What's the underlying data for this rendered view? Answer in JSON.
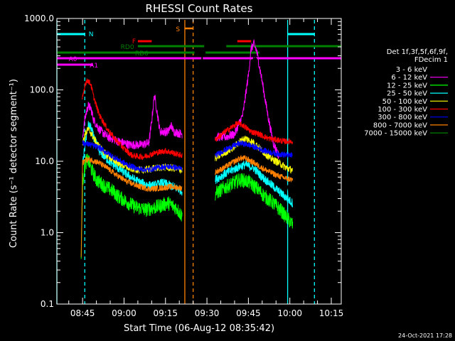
{
  "chart_data": {
    "type": "line",
    "title": "RHESSI Count Rates",
    "xlabel": "Start Time (06-Aug-12 08:35:42)",
    "ylabel": "Count Rate (s⁻¹ detector segment⁻¹)",
    "yscale": "log",
    "ylim": [
      0.1,
      1000
    ],
    "xlim_minutes": [
      35.7,
      138.6
    ],
    "y_ticks": [
      {
        "value": 0.1,
        "label": "0.1"
      },
      {
        "value": 1,
        "label": "1.0"
      },
      {
        "value": 10,
        "label": "10.0"
      },
      {
        "value": 100,
        "label": "100.0"
      },
      {
        "value": 1000,
        "label": "1000.0"
      }
    ],
    "x_ticks": [
      {
        "value": 45,
        "label": "08:45"
      },
      {
        "value": 60,
        "label": "09:00"
      },
      {
        "value": 75,
        "label": "09:15"
      },
      {
        "value": 90,
        "label": "09:30"
      },
      {
        "value": 105,
        "label": "09:45"
      },
      {
        "value": 120,
        "label": "10:00"
      },
      {
        "value": 135,
        "label": "10:15"
      }
    ],
    "legend_header": [
      "Det 1f,3f,5f,6f,9f,",
      "FDecim 1"
    ],
    "series": [
      {
        "name": "3 - 6 keV",
        "color": "#ffffff",
        "dark": "#000000",
        "noise": 0.07,
        "segments": [
          [
            [
              45,
              15
            ],
            [
              46,
              18
            ],
            [
              47,
              20
            ],
            [
              48,
              24
            ],
            [
              49,
              18
            ],
            [
              52,
              14
            ],
            [
              55,
              11
            ],
            [
              58,
              10
            ],
            [
              61,
              8
            ],
            [
              64,
              6.5
            ],
            [
              67,
              5.8
            ],
            [
              70,
              6.5
            ],
            [
              74,
              7.8
            ],
            [
              77,
              7.5
            ],
            [
              80,
              7
            ],
            [
              81,
              6.8
            ]
          ],
          [
            [
              93,
              9
            ],
            [
              96,
              10.5
            ],
            [
              99,
              12
            ],
            [
              102,
              18
            ],
            [
              104,
              50
            ],
            [
              106,
              200
            ],
            [
              107,
              285
            ],
            [
              108,
              240
            ],
            [
              110,
              130
            ],
            [
              112,
              40
            ],
            [
              114,
              16
            ],
            [
              117,
              7
            ],
            [
              120,
              3.5
            ],
            [
              121,
              2
            ]
          ]
        ]
      },
      {
        "name": "6 - 12 keV",
        "color": "#ff00ff",
        "noise": 0.06,
        "segments": [
          [
            [
              45,
              22
            ],
            [
              46,
              42
            ],
            [
              47,
              60
            ],
            [
              48,
              55
            ],
            [
              49,
              38
            ],
            [
              51,
              28
            ],
            [
              54,
              22
            ],
            [
              58,
              19
            ],
            [
              62,
              17
            ],
            [
              66,
              17
            ],
            [
              69,
              18
            ],
            [
              70,
              36
            ],
            [
              71,
              85
            ],
            [
              72,
              48
            ],
            [
              73,
              26
            ],
            [
              76,
              26
            ],
            [
              77,
              32
            ],
            [
              78,
              26
            ],
            [
              81,
              24
            ]
          ],
          [
            [
              93,
              22
            ],
            [
              97,
              22
            ],
            [
              100,
              24
            ],
            [
              103,
              45
            ],
            [
              105,
              160
            ],
            [
              106,
              380
            ],
            [
              107,
              440
            ],
            [
              108,
              350
            ],
            [
              110,
              130
            ],
            [
              112,
              45
            ],
            [
              114,
              18
            ],
            [
              116,
              12
            ]
          ]
        ]
      },
      {
        "name": "12 - 25 keV",
        "color": "#00ff00",
        "noise": 0.1,
        "segments": [
          [
            [
              44.5,
              0.42
            ],
            [
              45,
              5
            ],
            [
              46,
              9.5
            ],
            [
              47,
              10.5
            ],
            [
              48,
              8
            ],
            [
              50,
              5.5
            ],
            [
              53,
              4.5
            ],
            [
              56,
              3.8
            ],
            [
              58,
              3.2
            ],
            [
              61,
              2.7
            ],
            [
              64,
              2.3
            ],
            [
              68,
              2.1
            ],
            [
              72,
              2.3
            ],
            [
              76,
              2.6
            ],
            [
              79,
              2.2
            ],
            [
              81,
              1.7
            ]
          ],
          [
            [
              93,
              3.5
            ],
            [
              96,
              4.2
            ],
            [
              99,
              4.8
            ],
            [
              102,
              5.5
            ],
            [
              105,
              5.2
            ],
            [
              108,
              4.2
            ],
            [
              111,
              3.2
            ],
            [
              114,
              2.6
            ],
            [
              117,
              2
            ],
            [
              119,
              1.6
            ],
            [
              121,
              1.3
            ]
          ]
        ]
      },
      {
        "name": "25 - 50 keV",
        "color": "#00ffff",
        "noise": 0.06,
        "segments": [
          [
            [
              45,
              9
            ],
            [
              46,
              18
            ],
            [
              47,
              32
            ],
            [
              48,
              30
            ],
            [
              49,
              22
            ],
            [
              51,
              14
            ],
            [
              54,
              10.5
            ],
            [
              57,
              8.5
            ],
            [
              60,
              7
            ],
            [
              63,
              5.8
            ],
            [
              66,
              5
            ],
            [
              70,
              4.5
            ],
            [
              74,
              5
            ],
            [
              78,
              4.4
            ],
            [
              81,
              3.8
            ]
          ],
          [
            [
              93,
              5.5
            ],
            [
              96,
              6.5
            ],
            [
              99,
              7.5
            ],
            [
              102,
              8.5
            ],
            [
              104,
              9
            ],
            [
              107,
              8
            ],
            [
              110,
              6
            ],
            [
              113,
              4.8
            ],
            [
              116,
              3.8
            ],
            [
              119,
              3
            ],
            [
              121,
              2.6
            ]
          ]
        ]
      },
      {
        "name": "50 - 100 keV",
        "color": "#ffff00",
        "noise": 0.05,
        "segments": [
          [
            [
              45,
              18
            ],
            [
              46,
              24
            ],
            [
              47,
              28
            ],
            [
              48,
              25
            ],
            [
              50,
              18
            ],
            [
              53,
              13
            ],
            [
              56,
              10.5
            ],
            [
              59,
              9
            ],
            [
              62,
              8
            ],
            [
              66,
              7.5
            ],
            [
              70,
              7.8
            ],
            [
              74,
              8.3
            ],
            [
              78,
              8
            ],
            [
              81,
              7.5
            ]
          ],
          [
            [
              93,
              11
            ],
            [
              96,
              13
            ],
            [
              99,
              15
            ],
            [
              102,
              19
            ],
            [
              104,
              21
            ],
            [
              107,
              18
            ],
            [
              110,
              14
            ],
            [
              113,
              11
            ],
            [
              116,
              9.5
            ],
            [
              119,
              8
            ],
            [
              121,
              7.5
            ]
          ]
        ]
      },
      {
        "name": "100 - 300 keV",
        "color": "#ff0000",
        "noise": 0.04,
        "segments": [
          [
            [
              44.8,
              70
            ],
            [
              46,
              125
            ],
            [
              47,
              135
            ],
            [
              48,
              120
            ],
            [
              49,
              80
            ],
            [
              51,
              45
            ],
            [
              54,
              28
            ],
            [
              57,
              20
            ],
            [
              60,
              15
            ],
            [
              63,
              12
            ],
            [
              67,
              11.5
            ],
            [
              71,
              13
            ],
            [
              75,
              14
            ],
            [
              78,
              13
            ],
            [
              81,
              12
            ]
          ],
          [
            [
              93,
              20
            ],
            [
              96,
              25
            ],
            [
              99,
              30
            ],
            [
              101,
              34
            ],
            [
              103,
              32
            ],
            [
              106,
              26
            ],
            [
              109,
              24
            ],
            [
              112,
              21
            ],
            [
              115,
              20
            ],
            [
              118,
              19
            ],
            [
              121,
              19
            ]
          ]
        ]
      },
      {
        "name": "300 - 800 keV",
        "color": "#0000ff",
        "noise": 0.04,
        "segments": [
          [
            [
              45,
              18
            ],
            [
              48,
              17
            ],
            [
              51,
              15.5
            ],
            [
              54,
              13
            ],
            [
              57,
              11
            ],
            [
              61,
              9
            ],
            [
              65,
              7.8
            ],
            [
              69,
              7.6
            ],
            [
              73,
              8.3
            ],
            [
              77,
              8.4
            ],
            [
              81,
              7.8
            ]
          ],
          [
            [
              93,
              12
            ],
            [
              96,
              14
            ],
            [
              99,
              16
            ],
            [
              102,
              18
            ],
            [
              105,
              17
            ],
            [
              108,
              15.5
            ],
            [
              111,
              14
            ],
            [
              114,
              13
            ],
            [
              117,
              12.5
            ],
            [
              121,
              12
            ]
          ]
        ]
      },
      {
        "name": "800 - 7000 keV",
        "color": "#ff8000",
        "noise": 0.04,
        "segments": [
          [
            [
              44.5,
              0.45
            ],
            [
              45,
              9.5
            ],
            [
              46,
              10.5
            ],
            [
              48,
              10.5
            ],
            [
              51,
              9.5
            ],
            [
              54,
              8
            ],
            [
              57,
              6.5
            ],
            [
              61,
              5.2
            ],
            [
              65,
              4.5
            ],
            [
              69,
              4.1
            ],
            [
              73,
              4.2
            ],
            [
              77,
              4.4
            ],
            [
              81,
              4.2
            ]
          ],
          [
            [
              93,
              7
            ],
            [
              96,
              8
            ],
            [
              99,
              9.5
            ],
            [
              102,
              11
            ],
            [
              104,
              11
            ],
            [
              107,
              9.5
            ],
            [
              110,
              8
            ],
            [
              113,
              7
            ],
            [
              116,
              6.2
            ],
            [
              119,
              5.7
            ],
            [
              121,
              5.5
            ]
          ]
        ]
      },
      {
        "name": "7000 - 15000 keV",
        "color": "#008000",
        "noise": 0,
        "segments": []
      }
    ],
    "annotations": {
      "labels": [
        {
          "text": "N",
          "color": "#00ffff"
        },
        {
          "text": "S",
          "color": "#ff8000"
        },
        {
          "text": "F",
          "color": "#ff0000"
        },
        {
          "text": "RD0",
          "color": "#008000"
        },
        {
          "text": "RD6",
          "color": "#008000"
        },
        {
          "text": "A0",
          "color": "#ff00ff"
        },
        {
          "text": "A1",
          "color": "#ff00ff"
        }
      ],
      "intervals": [
        {
          "flag": "N",
          "color": "#00ffff",
          "spans": [
            [
              35.7,
              45.8
            ],
            [
              119.2,
              128.9
            ]
          ]
        },
        {
          "flag": "S",
          "color": "#ff8000",
          "spans": [
            [
              82,
              85
            ]
          ]
        },
        {
          "flag": "F",
          "color": "#ff0000",
          "spans": [
            [
              65,
              70
            ],
            [
              101,
              106
            ]
          ]
        },
        {
          "flag": "RD0",
          "color": "#008000",
          "spans": [
            [
              65,
              89
            ],
            [
              97,
              138.6
            ]
          ]
        },
        {
          "flag": "RD6",
          "color": "#008000",
          "spans": [
            [
              35.7,
              85.5
            ],
            [
              89.5,
              109
            ]
          ]
        },
        {
          "flag": "A0",
          "color": "#ff00ff",
          "spans": [
            [
              35.7,
              88
            ],
            [
              88.5,
              138.6
            ]
          ]
        },
        {
          "flag": "A1",
          "color": "#ff00ff",
          "spans": [
            [
              35.7,
              48.8
            ]
          ]
        }
      ],
      "vlines": [
        {
          "minute": 35.7,
          "color": "#00ffff",
          "style": "solid"
        },
        {
          "minute": 45.8,
          "color": "#00ffff",
          "style": "dashed"
        },
        {
          "minute": 119.2,
          "color": "#00ffff",
          "style": "solid"
        },
        {
          "minute": 128.9,
          "color": "#00ffff",
          "style": "dashed"
        },
        {
          "minute": 82.0,
          "color": "#ff8000",
          "style": "solid"
        },
        {
          "minute": 85.0,
          "color": "#ff8000",
          "style": "dashed"
        }
      ]
    }
  },
  "footer_timestamp": "24-Oct-2021 17:28"
}
